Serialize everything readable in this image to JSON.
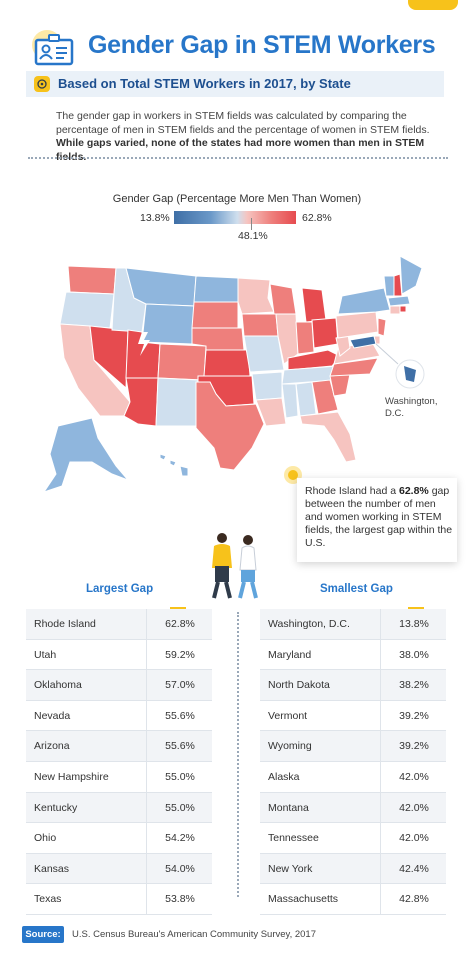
{
  "title": "Gender Gap in STEM Workers",
  "subtitle": "Based on Total STEM Workers in 2017, by State",
  "intro": {
    "line1": "The gender gap in workers in STEM fields was calculated by comparing the",
    "line2": "percentage of men in STEM fields and the percentage of women in STEM fields.",
    "line3": "While gaps varied, none of the states had more women than men in STEM fields."
  },
  "legend": {
    "title": "Gender Gap (Percentage More Men Than Women)",
    "min": "13.8%",
    "mid": "48.1%",
    "max": "62.8%"
  },
  "map": {
    "dc_label_line1": "Washington,",
    "dc_label_line2": "D.C.",
    "colors": {
      "high": "#e64b4f",
      "mid_high": "#ee7f7c",
      "light_red": "#f6c4c0",
      "light_blue": "#cfdfee",
      "mid_blue": "#8fb6dd",
      "low": "#3f6fa6"
    }
  },
  "callout": {
    "part1": "Rhode Island had a ",
    "value": "62.8%",
    "part2": " gap between the number of men and women working in STEM fields, the largest gap within the U.S."
  },
  "chart_data": {
    "type": "table",
    "largest_gap": {
      "header": "Largest Gap",
      "rows": [
        {
          "state": "Rhode Island",
          "value": "62.8%"
        },
        {
          "state": "Utah",
          "value": "59.2%"
        },
        {
          "state": "Oklahoma",
          "value": "57.0%"
        },
        {
          "state": "Nevada",
          "value": "55.6%"
        },
        {
          "state": "Arizona",
          "value": "55.6%"
        },
        {
          "state": "New Hampshire",
          "value": "55.0%"
        },
        {
          "state": "Kentucky",
          "value": "55.0%"
        },
        {
          "state": "Ohio",
          "value": "54.2%"
        },
        {
          "state": "Kansas",
          "value": "54.0%"
        },
        {
          "state": "Texas",
          "value": "53.8%"
        }
      ]
    },
    "smallest_gap": {
      "header": "Smallest Gap",
      "rows": [
        {
          "state": "Washington, D.C.",
          "value": "13.8%"
        },
        {
          "state": "Maryland",
          "value": "38.0%"
        },
        {
          "state": "North Dakota",
          "value": "38.2%"
        },
        {
          "state": "Vermont",
          "value": "39.2%"
        },
        {
          "state": "Wyoming",
          "value": "39.2%"
        },
        {
          "state": "Alaska",
          "value": "42.0%"
        },
        {
          "state": "Montana",
          "value": "42.0%"
        },
        {
          "state": "Tennessee",
          "value": "42.0%"
        },
        {
          "state": "New York",
          "value": "42.4%"
        },
        {
          "state": "Massachusetts",
          "value": "42.8%"
        }
      ]
    }
  },
  "source": {
    "label": "Source:",
    "text": "U.S. Census Bureau's American Community Survey, 2017"
  }
}
